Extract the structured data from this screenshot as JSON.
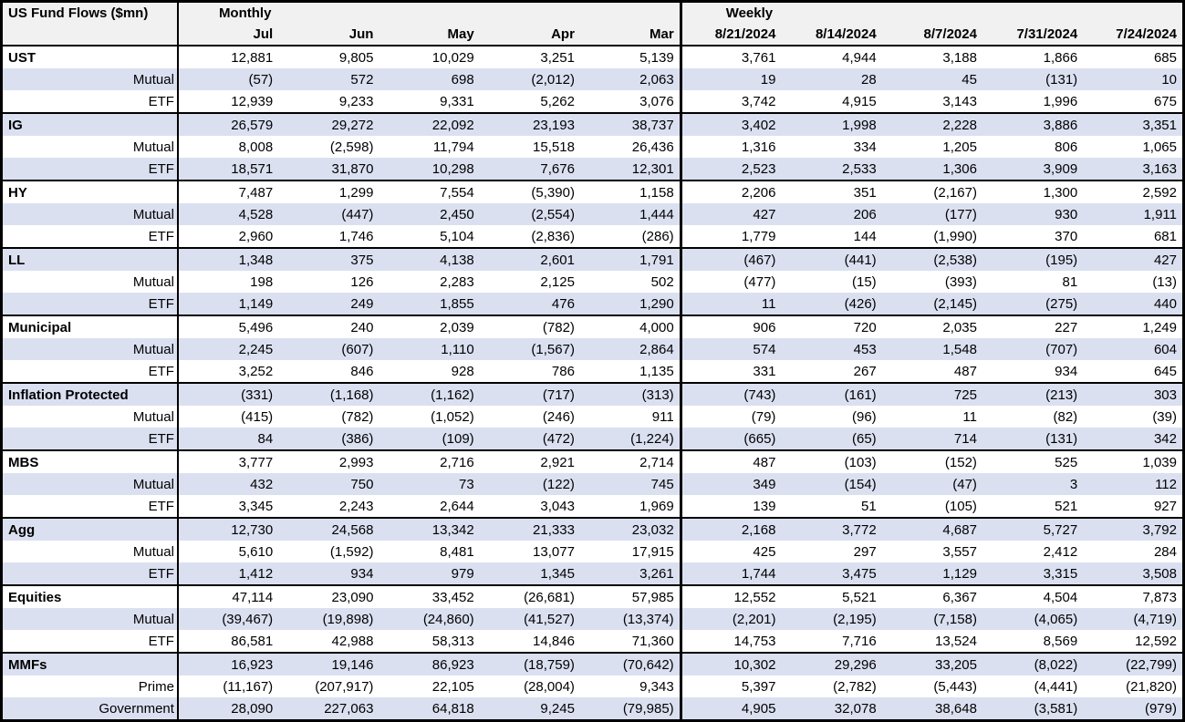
{
  "table": {
    "title": "US Fund Flows ($mn)",
    "sections": [
      {
        "label": "Monthly",
        "columns": [
          "Jul",
          "Jun",
          "May",
          "Apr",
          "Mar"
        ]
      },
      {
        "label": "Weekly",
        "columns": [
          "8/21/2024",
          "8/14/2024",
          "8/7/2024",
          "7/31/2024",
          "7/24/2024"
        ]
      }
    ],
    "groups": [
      {
        "name": "UST",
        "monthly": [
          "12,881",
          "9,805",
          "10,029",
          "3,251",
          "5,139"
        ],
        "weekly": [
          "3,761",
          "4,944",
          "3,188",
          "1,866",
          "685"
        ],
        "rows": [
          {
            "label": "Mutual",
            "monthly": [
              "(57)",
              "572",
              "698",
              "(2,012)",
              "2,063"
            ],
            "weekly": [
              "19",
              "28",
              "45",
              "(131)",
              "10"
            ]
          },
          {
            "label": "ETF",
            "monthly": [
              "12,939",
              "9,233",
              "9,331",
              "5,262",
              "3,076"
            ],
            "weekly": [
              "3,742",
              "4,915",
              "3,143",
              "1,996",
              "675"
            ]
          }
        ]
      },
      {
        "name": "IG",
        "monthly": [
          "26,579",
          "29,272",
          "22,092",
          "23,193",
          "38,737"
        ],
        "weekly": [
          "3,402",
          "1,998",
          "2,228",
          "3,886",
          "3,351"
        ],
        "rows": [
          {
            "label": "Mutual",
            "monthly": [
              "8,008",
              "(2,598)",
              "11,794",
              "15,518",
              "26,436"
            ],
            "weekly": [
              "1,316",
              "334",
              "1,205",
              "806",
              "1,065"
            ]
          },
          {
            "label": "ETF",
            "monthly": [
              "18,571",
              "31,870",
              "10,298",
              "7,676",
              "12,301"
            ],
            "weekly": [
              "2,523",
              "2,533",
              "1,306",
              "3,909",
              "3,163"
            ]
          }
        ]
      },
      {
        "name": "HY",
        "monthly": [
          "7,487",
          "1,299",
          "7,554",
          "(5,390)",
          "1,158"
        ],
        "weekly": [
          "2,206",
          "351",
          "(2,167)",
          "1,300",
          "2,592"
        ],
        "rows": [
          {
            "label": "Mutual",
            "monthly": [
              "4,528",
              "(447)",
              "2,450",
              "(2,554)",
              "1,444"
            ],
            "weekly": [
              "427",
              "206",
              "(177)",
              "930",
              "1,911"
            ]
          },
          {
            "label": "ETF",
            "monthly": [
              "2,960",
              "1,746",
              "5,104",
              "(2,836)",
              "(286)"
            ],
            "weekly": [
              "1,779",
              "144",
              "(1,990)",
              "370",
              "681"
            ]
          }
        ]
      },
      {
        "name": "LL",
        "monthly": [
          "1,348",
          "375",
          "4,138",
          "2,601",
          "1,791"
        ],
        "weekly": [
          "(467)",
          "(441)",
          "(2,538)",
          "(195)",
          "427"
        ],
        "rows": [
          {
            "label": "Mutual",
            "monthly": [
              "198",
              "126",
              "2,283",
              "2,125",
              "502"
            ],
            "weekly": [
              "(477)",
              "(15)",
              "(393)",
              "81",
              "(13)"
            ]
          },
          {
            "label": "ETF",
            "monthly": [
              "1,149",
              "249",
              "1,855",
              "476",
              "1,290"
            ],
            "weekly": [
              "11",
              "(426)",
              "(2,145)",
              "(275)",
              "440"
            ]
          }
        ]
      },
      {
        "name": "Municipal",
        "monthly": [
          "5,496",
          "240",
          "2,039",
          "(782)",
          "4,000"
        ],
        "weekly": [
          "906",
          "720",
          "2,035",
          "227",
          "1,249"
        ],
        "rows": [
          {
            "label": "Mutual",
            "monthly": [
              "2,245",
              "(607)",
              "1,110",
              "(1,567)",
              "2,864"
            ],
            "weekly": [
              "574",
              "453",
              "1,548",
              "(707)",
              "604"
            ]
          },
          {
            "label": "ETF",
            "monthly": [
              "3,252",
              "846",
              "928",
              "786",
              "1,135"
            ],
            "weekly": [
              "331",
              "267",
              "487",
              "934",
              "645"
            ]
          }
        ]
      },
      {
        "name": "Inflation Protected",
        "monthly": [
          "(331)",
          "(1,168)",
          "(1,162)",
          "(717)",
          "(313)"
        ],
        "weekly": [
          "(743)",
          "(161)",
          "725",
          "(213)",
          "303"
        ],
        "rows": [
          {
            "label": "Mutual",
            "monthly": [
              "(415)",
              "(782)",
              "(1,052)",
              "(246)",
              "911"
            ],
            "weekly": [
              "(79)",
              "(96)",
              "11",
              "(82)",
              "(39)"
            ]
          },
          {
            "label": "ETF",
            "monthly": [
              "84",
              "(386)",
              "(109)",
              "(472)",
              "(1,224)"
            ],
            "weekly": [
              "(665)",
              "(65)",
              "714",
              "(131)",
              "342"
            ]
          }
        ]
      },
      {
        "name": "MBS",
        "monthly": [
          "3,777",
          "2,993",
          "2,716",
          "2,921",
          "2,714"
        ],
        "weekly": [
          "487",
          "(103)",
          "(152)",
          "525",
          "1,039"
        ],
        "rows": [
          {
            "label": "Mutual",
            "monthly": [
              "432",
              "750",
              "73",
              "(122)",
              "745"
            ],
            "weekly": [
              "349",
              "(154)",
              "(47)",
              "3",
              "112"
            ]
          },
          {
            "label": "ETF",
            "monthly": [
              "3,345",
              "2,243",
              "2,644",
              "3,043",
              "1,969"
            ],
            "weekly": [
              "139",
              "51",
              "(105)",
              "521",
              "927"
            ]
          }
        ]
      },
      {
        "name": "Agg",
        "monthly": [
          "12,730",
          "24,568",
          "13,342",
          "21,333",
          "23,032"
        ],
        "weekly": [
          "2,168",
          "3,772",
          "4,687",
          "5,727",
          "3,792"
        ],
        "rows": [
          {
            "label": "Mutual",
            "monthly": [
              "5,610",
              "(1,592)",
              "8,481",
              "13,077",
              "17,915"
            ],
            "weekly": [
              "425",
              "297",
              "3,557",
              "2,412",
              "284"
            ]
          },
          {
            "label": "ETF",
            "monthly": [
              "1,412",
              "934",
              "979",
              "1,345",
              "3,261"
            ],
            "weekly": [
              "1,744",
              "3,475",
              "1,129",
              "3,315",
              "3,508"
            ]
          }
        ]
      },
      {
        "name": "Equities",
        "monthly": [
          "47,114",
          "23,090",
          "33,452",
          "(26,681)",
          "57,985"
        ],
        "weekly": [
          "12,552",
          "5,521",
          "6,367",
          "4,504",
          "7,873"
        ],
        "rows": [
          {
            "label": "Mutual",
            "monthly": [
              "(39,467)",
              "(19,898)",
              "(24,860)",
              "(41,527)",
              "(13,374)"
            ],
            "weekly": [
              "(2,201)",
              "(2,195)",
              "(7,158)",
              "(4,065)",
              "(4,719)"
            ]
          },
          {
            "label": "ETF",
            "monthly": [
              "86,581",
              "42,988",
              "58,313",
              "14,846",
              "71,360"
            ],
            "weekly": [
              "14,753",
              "7,716",
              "13,524",
              "8,569",
              "12,592"
            ]
          }
        ]
      },
      {
        "name": "MMFs",
        "monthly": [
          "16,923",
          "19,146",
          "86,923",
          "(18,759)",
          "(70,642)"
        ],
        "weekly": [
          "10,302",
          "29,296",
          "33,205",
          "(8,022)",
          "(22,799)"
        ],
        "rows": [
          {
            "label": "Prime",
            "monthly": [
              "(11,167)",
              "(207,917)",
              "22,105",
              "(28,004)",
              "9,343"
            ],
            "weekly": [
              "5,397",
              "(2,782)",
              "(5,443)",
              "(4,441)",
              "(21,820)"
            ]
          },
          {
            "label": "Government",
            "monthly": [
              "28,090",
              "227,063",
              "64,818",
              "9,245",
              "(79,985)"
            ],
            "weekly": [
              "4,905",
              "32,078",
              "38,648",
              "(3,581)",
              "(979)"
            ]
          }
        ]
      }
    ]
  },
  "colors": {
    "header_bg": "#f1f1f1",
    "row_shade": "#dbe0f1",
    "border": "#000000",
    "text": "#000000",
    "background": "#ffffff"
  }
}
